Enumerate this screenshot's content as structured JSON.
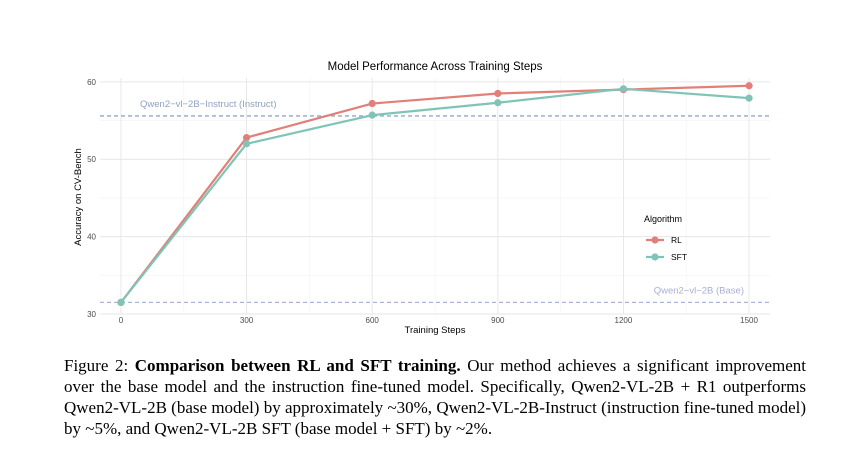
{
  "chart_data": {
    "type": "line",
    "title": "Model Performance Across Training Steps",
    "xlabel": "Training Steps",
    "ylabel": "Accuracy on CV-Bench",
    "x": [
      0,
      300,
      600,
      900,
      1200,
      1500
    ],
    "x_ticks": [
      "0",
      "300",
      "600",
      "900",
      "1200",
      "1500"
    ],
    "y_ticks": [
      "30",
      "40",
      "50",
      "60"
    ],
    "xlim": [
      -50,
      1550
    ],
    "ylim": [
      30,
      60.5
    ],
    "grid": true,
    "legend_title": "Algorithm",
    "legend_position": "right",
    "series": [
      {
        "name": "RL",
        "color": "#E08079",
        "values": [
          31.5,
          52.8,
          57.2,
          58.5,
          59.0,
          59.5
        ]
      },
      {
        "name": "SFT",
        "color": "#7FC4B6",
        "values": [
          31.5,
          52.0,
          55.7,
          57.3,
          59.1,
          57.9
        ]
      }
    ],
    "reference_lines": [
      {
        "label": "Qwen2−vl−2B−Instruct (Instruct)",
        "value": 55.6,
        "color": "#90A8C8",
        "label_color": "#8DA2C1",
        "label_position": "left"
      },
      {
        "label": "Qwen2−vl−2B (Base)",
        "value": 31.5,
        "color": "#A9B7D6",
        "label_color": "#A9AFD4",
        "label_position": "right"
      }
    ]
  },
  "caption": {
    "prefix": "Figure 2: ",
    "bold": "Comparison between RL and SFT training.",
    "body": " Our method achieves a significant improvement over the base model and the instruction fine-tuned model. Specifically, Qwen2-VL-2B + R1 outperforms Qwen2-VL-2B (base model) by approximately ~30%, Qwen2-VL-2B-Instruct (instruction fine-tuned model) by ~5%, and Qwen2-VL-2B SFT (base model + SFT) by ~2%."
  }
}
